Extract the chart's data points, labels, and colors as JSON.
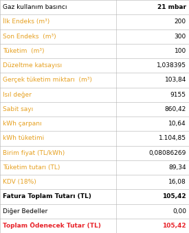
{
  "rows": [
    {
      "label": "Gaz kullanım basıncı",
      "value": "21 mbar",
      "label_color": "#000000",
      "value_color": "#000000",
      "label_bold": false,
      "value_bold": true,
      "bg": "#ffffff"
    },
    {
      "label": "İlk Endeks (m³)",
      "value": "200",
      "label_color": "#e6a020",
      "value_color": "#000000",
      "label_bold": false,
      "value_bold": false,
      "bg": "#ffffff"
    },
    {
      "label": "Son Endeks  (m³)",
      "value": "300",
      "label_color": "#e6a020",
      "value_color": "#000000",
      "label_bold": false,
      "value_bold": false,
      "bg": "#ffffff"
    },
    {
      "label": "Tüketim  (m³)",
      "value": "100",
      "label_color": "#e6a020",
      "value_color": "#000000",
      "label_bold": false,
      "value_bold": false,
      "bg": "#ffffff"
    },
    {
      "label": "Düzeltme katsayısı",
      "value": "1,038395",
      "label_color": "#e6a020",
      "value_color": "#000000",
      "label_bold": false,
      "value_bold": false,
      "bg": "#ffffff"
    },
    {
      "label": "Gerçek tüketim miktarı  (m³)",
      "value": "103,84",
      "label_color": "#e6a020",
      "value_color": "#000000",
      "label_bold": false,
      "value_bold": false,
      "bg": "#ffffff"
    },
    {
      "label": "Isıl değer",
      "value": "9155",
      "label_color": "#e6a020",
      "value_color": "#000000",
      "label_bold": false,
      "value_bold": false,
      "bg": "#ffffff"
    },
    {
      "label": "Sabit sayı",
      "value": "860,42",
      "label_color": "#e6a020",
      "value_color": "#000000",
      "label_bold": false,
      "value_bold": false,
      "bg": "#ffffff"
    },
    {
      "label": "kWh çarpanı",
      "value": "10,64",
      "label_color": "#e6a020",
      "value_color": "#000000",
      "label_bold": false,
      "value_bold": false,
      "bg": "#ffffff"
    },
    {
      "label": "kWh tüketimi",
      "value": "1.104,85",
      "label_color": "#e6a020",
      "value_color": "#000000",
      "label_bold": false,
      "value_bold": false,
      "bg": "#ffffff"
    },
    {
      "label": "Birim fiyat (TL/kWh)",
      "value": "0,08086269",
      "label_color": "#e6a020",
      "value_color": "#000000",
      "label_bold": false,
      "value_bold": false,
      "bg": "#ffffff"
    },
    {
      "label": "Tüketim tutarı (TL)",
      "value": "89,34",
      "label_color": "#e6a020",
      "value_color": "#000000",
      "label_bold": false,
      "value_bold": false,
      "bg": "#ffffff"
    },
    {
      "label": "KDV (18%)",
      "value": "16,08",
      "label_color": "#e6a020",
      "value_color": "#000000",
      "label_bold": false,
      "value_bold": false,
      "bg": "#ffffff"
    },
    {
      "label": "Fatura Toplam Tutarı (TL)",
      "value": "105,42",
      "label_color": "#000000",
      "value_color": "#000000",
      "label_bold": true,
      "value_bold": true,
      "bg": "#ffffff"
    },
    {
      "label": "Diğer Bedeller",
      "value": "0,00",
      "label_color": "#000000",
      "value_color": "#000000",
      "label_bold": false,
      "value_bold": false,
      "bg": "#ffffff"
    },
    {
      "label": "Toplam Ödenecek Tutar (TL)",
      "value": "105,42",
      "label_color": "#e8242b",
      "value_color": "#e8242b",
      "label_bold": true,
      "value_bold": true,
      "bg": "#ffffff"
    }
  ],
  "border_color": "#b0b0b0",
  "fig_bg": "#ffffff",
  "font_size": 6.5,
  "col_split": 0.615,
  "fig_width": 2.75,
  "fig_height": 3.4,
  "dpi": 100
}
